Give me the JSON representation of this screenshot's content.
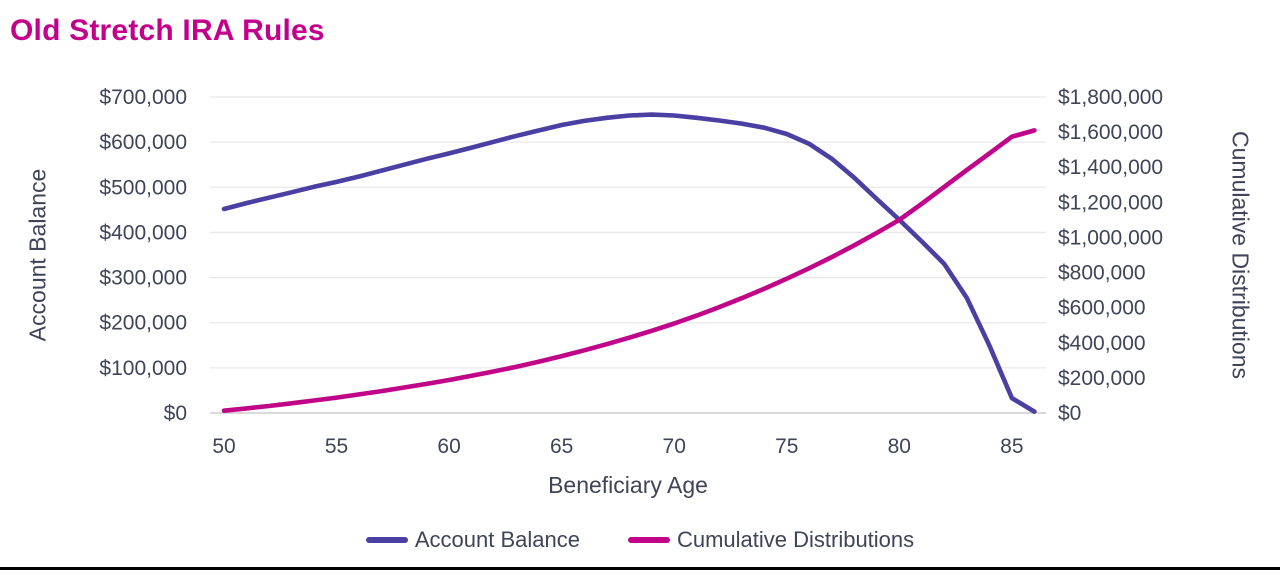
{
  "title": "Old Stretch IRA Rules",
  "colors": {
    "title": "#C3008B",
    "axis_text": "#3F4458",
    "grid": "#E8E8E8",
    "axis_line": "#D9D9D9",
    "divider": "#000000"
  },
  "chart_data": {
    "type": "line",
    "title": "Old Stretch IRA Rules",
    "xlabel": "Beneficiary Age",
    "x_ticks": [
      50,
      55,
      60,
      65,
      70,
      75,
      80,
      85
    ],
    "x": [
      50,
      51,
      52,
      53,
      54,
      55,
      56,
      57,
      58,
      59,
      60,
      61,
      62,
      63,
      64,
      65,
      66,
      67,
      68,
      69,
      70,
      71,
      72,
      73,
      74,
      75,
      76,
      77,
      78,
      79,
      80,
      81,
      82,
      83,
      84,
      85,
      86
    ],
    "left_axis": {
      "label": "Account Balance",
      "min": 0,
      "max": 700000,
      "tick_step": 100000,
      "ticks": [
        "$700,000",
        "$600,000",
        "$500,000",
        "$400,000",
        "$300,000",
        "$200,000",
        "$100,000",
        "$0"
      ]
    },
    "right_axis": {
      "label": "Cumulative Distributions",
      "min": 0,
      "max": 1800000,
      "tick_step": 200000,
      "ticks": [
        "$1,800,000",
        "$1,600,000",
        "$1,400,000",
        "$1,200,000",
        "$1,000,000",
        "$800,000",
        "$600,000",
        "$400,000",
        "$200,000",
        "$0"
      ]
    },
    "grid": true,
    "legend_position": "bottom",
    "series": [
      {
        "name": "Account Balance",
        "axis": "left",
        "color": "#4A3FA3",
        "values": [
          452000,
          465000,
          477000,
          489000,
          501000,
          512000,
          524000,
          537000,
          550000,
          563000,
          575000,
          588000,
          601000,
          614000,
          626000,
          638000,
          647000,
          654000,
          659000,
          661000,
          659000,
          654000,
          648000,
          641000,
          632000,
          618000,
          596000,
          563000,
          521000,
          474000,
          428000,
          380000,
          330000,
          255000,
          150000,
          33000,
          3000
        ]
      },
      {
        "name": "Cumulative Distributions",
        "axis": "right",
        "color": "#C00589",
        "values": [
          13000,
          26000,
          40000,
          55000,
          71000,
          88000,
          106000,
          125000,
          145000,
          166000,
          188000,
          212000,
          237000,
          264000,
          293000,
          324000,
          357000,
          392000,
          429000,
          468000,
          510000,
          555000,
          603000,
          654000,
          708000,
          765000,
          825000,
          888000,
          955000,
          1026000,
          1100000,
          1192000,
          1288000,
          1384000,
          1478000,
          1574000,
          1610000
        ]
      }
    ]
  }
}
